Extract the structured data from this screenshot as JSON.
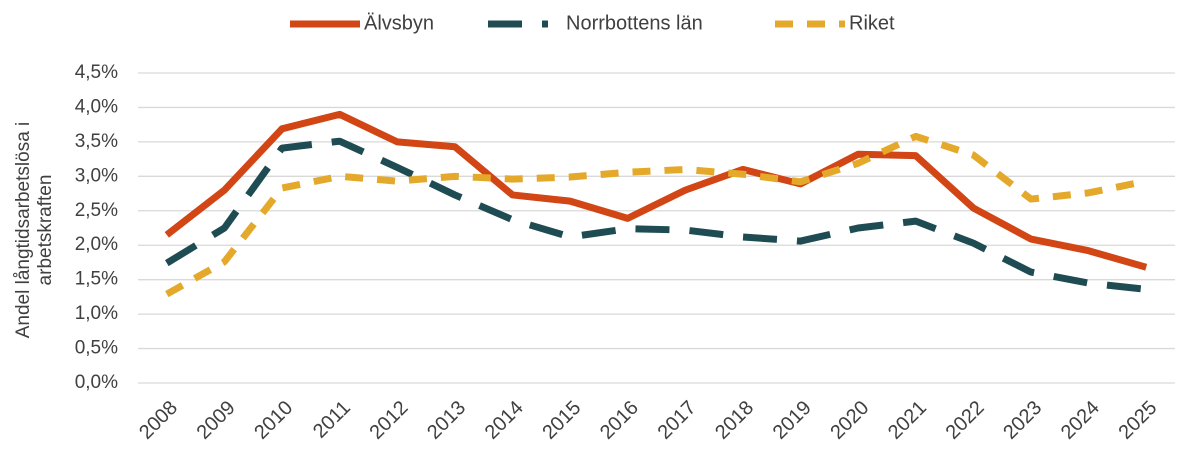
{
  "chart_data": {
    "type": "line",
    "y_label": [
      "Andel långtidsarbetslösa i",
      "arbetskraften"
    ],
    "categories": [
      "2008",
      "2009",
      "2010",
      "2011",
      "2012",
      "2013",
      "2014",
      "2015",
      "2016",
      "2017",
      "2018",
      "2019",
      "2020",
      "2021",
      "2022",
      "2023",
      "2024",
      "2025"
    ],
    "series": [
      {
        "name": "Älvsbyn",
        "color": "#d24515",
        "dash": "solid",
        "values": [
          2.15,
          2.8,
          3.69,
          3.9,
          3.5,
          3.43,
          2.73,
          2.64,
          2.39,
          2.8,
          3.1,
          2.89,
          3.32,
          3.3,
          2.54,
          2.09,
          1.92,
          1.68
        ]
      },
      {
        "name": "Norrbottens län",
        "color": "#1e4c52",
        "dash": "long-dash",
        "values": [
          1.74,
          2.25,
          3.41,
          3.51,
          3.13,
          2.73,
          2.37,
          2.12,
          2.24,
          2.22,
          2.12,
          2.06,
          2.25,
          2.35,
          2.03,
          1.61,
          1.45,
          1.36
        ]
      },
      {
        "name": "Riket",
        "color": "#e4a92a",
        "dash": "dash",
        "values": [
          1.29,
          1.76,
          2.83,
          3.0,
          2.93,
          3.0,
          2.96,
          2.99,
          3.06,
          3.1,
          3.03,
          2.92,
          3.19,
          3.58,
          3.31,
          2.67,
          2.76,
          2.93
        ]
      }
    ],
    "ylim": [
      0,
      4.5
    ],
    "yticks": [
      {
        "value": 0,
        "label": "0,0%"
      },
      {
        "value": 0.5,
        "label": "0,5%"
      },
      {
        "value": 1,
        "label": "1,0%"
      },
      {
        "value": 1.5,
        "label": "1,5%"
      },
      {
        "value": 2,
        "label": "2,0%"
      },
      {
        "value": 2.5,
        "label": "2,5%"
      },
      {
        "value": 3,
        "label": "3,0%"
      },
      {
        "value": 3.5,
        "label": "3,5%"
      },
      {
        "value": 4,
        "label": "4,0%"
      },
      {
        "value": 4.5,
        "label": "4,5%"
      }
    ],
    "grid": true,
    "legend": "top"
  }
}
